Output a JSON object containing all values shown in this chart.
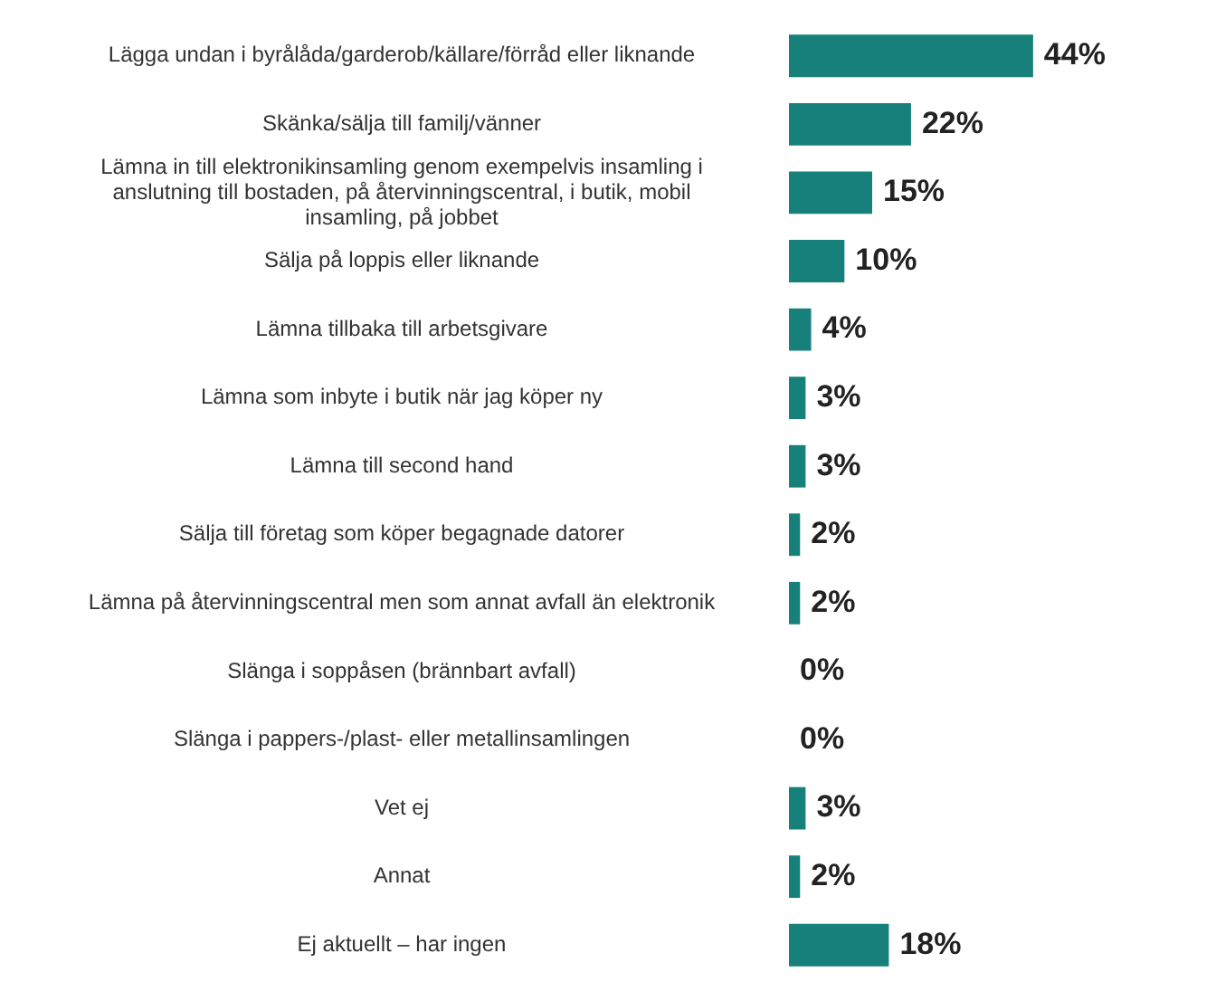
{
  "chart_data": {
    "type": "bar",
    "orientation": "horizontal",
    "grid": false,
    "legend": false,
    "categories": [
      "Lägga undan i byrålåda/garderob/källare/förråd eller liknande",
      "Skänka/sälja till familj/vänner",
      "Lämna in till elektronikinsamling genom exempelvis insamling i anslutning till bostaden, på återvinningscentral, i butik, mobil insamling, på jobbet",
      "Sälja på loppis eller liknande",
      "Lämna tillbaka till arbetsgivare",
      "Lämna som inbyte i butik när jag köper ny",
      "Lämna till second hand",
      "Sälja till företag som köper begagnade datorer",
      "Lämna på återvinningscentral men som annat avfall än elektronik",
      "Slänga i soppåsen (brännbart avfall)",
      "Slänga i pappers-/plast- eller metallinsamlingen",
      "Vet ej",
      "Annat",
      "Ej aktuellt – har ingen"
    ],
    "values": [
      44,
      22,
      15,
      10,
      4,
      3,
      3,
      2,
      2,
      0,
      0,
      3,
      2,
      18
    ],
    "value_labels": [
      "44%",
      "22%",
      "15%",
      "10%",
      "4%",
      "3%",
      "3%",
      "2%",
      "2%",
      "0%",
      "0%",
      "3%",
      "2%",
      "18%"
    ],
    "color": "#17807a"
  }
}
